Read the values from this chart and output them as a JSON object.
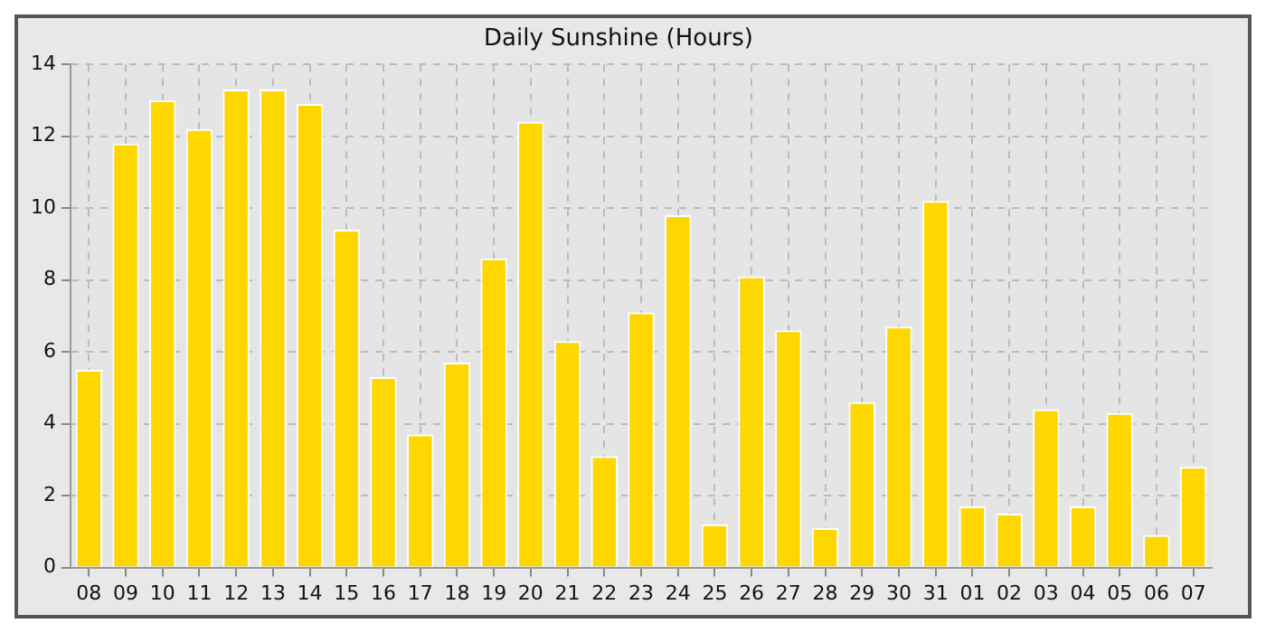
{
  "chart_data": {
    "type": "bar",
    "title": "Daily Sunshine (Hours)",
    "categories": [
      "08",
      "09",
      "10",
      "11",
      "12",
      "13",
      "14",
      "15",
      "16",
      "17",
      "18",
      "19",
      "20",
      "21",
      "22",
      "23",
      "24",
      "25",
      "26",
      "27",
      "28",
      "29",
      "30",
      "31",
      "01",
      "02",
      "03",
      "04",
      "05",
      "06",
      "07"
    ],
    "values": [
      5.5,
      11.8,
      13.0,
      12.2,
      13.3,
      13.3,
      12.9,
      9.4,
      5.3,
      3.7,
      5.7,
      8.6,
      12.4,
      6.3,
      3.1,
      7.1,
      9.8,
      1.2,
      8.1,
      6.6,
      1.1,
      4.6,
      6.7,
      10.2,
      1.7,
      1.5,
      4.4,
      1.7,
      4.3,
      0.9,
      2.8
    ],
    "color": "#ffd700",
    "ylim": [
      0,
      14
    ],
    "yticks": [
      0,
      2,
      4,
      6,
      8,
      10,
      12,
      14
    ],
    "grid": true
  }
}
